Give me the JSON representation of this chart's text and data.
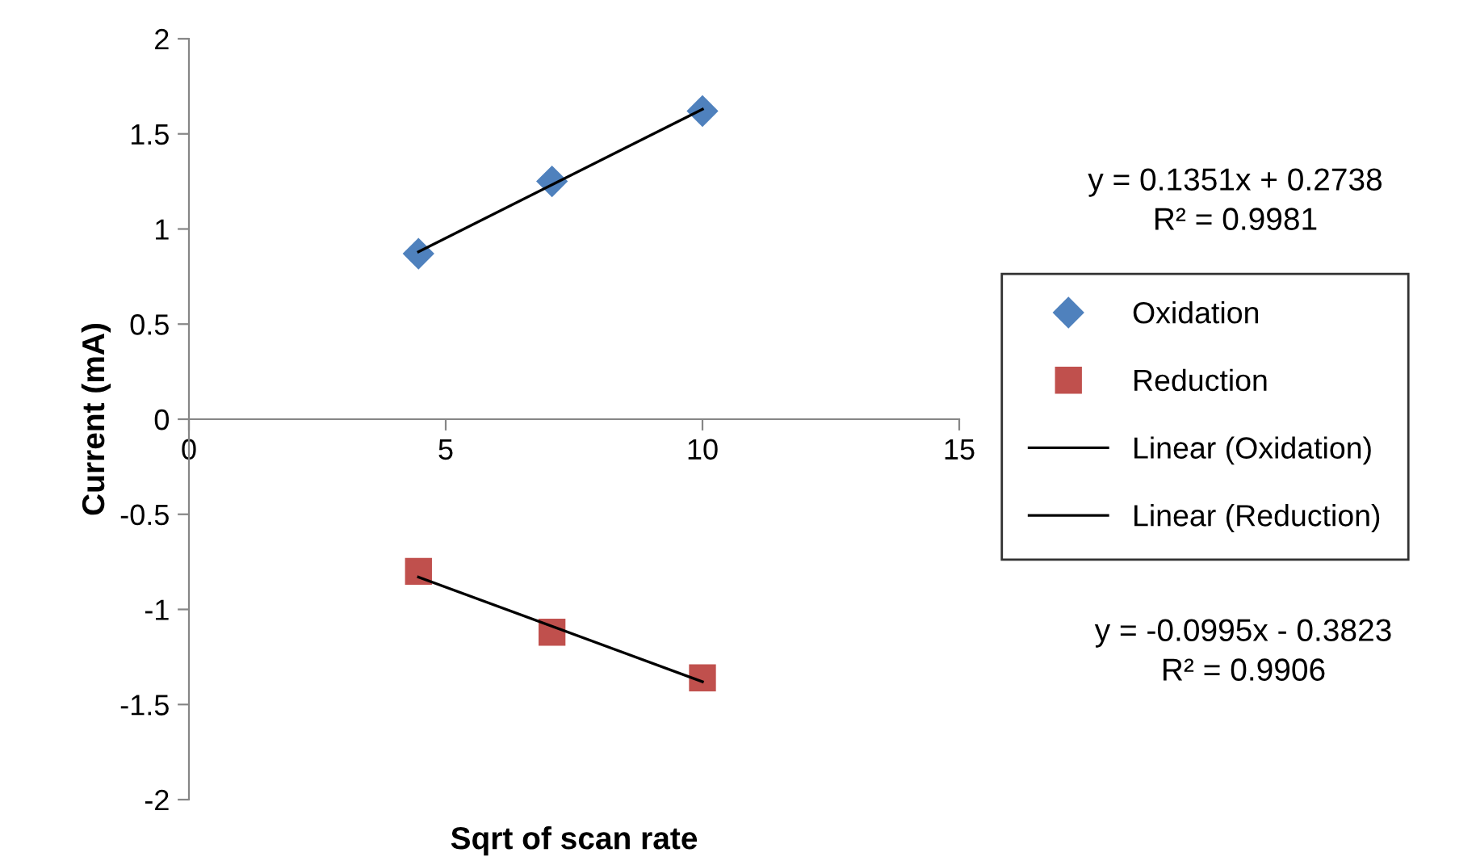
{
  "chart_data": {
    "type": "scatter",
    "xlabel": "Sqrt of scan rate",
    "ylabel": "Current (mA)",
    "xlim": [
      0,
      15
    ],
    "xticks": [
      0,
      5,
      10,
      15
    ],
    "ylim": [
      -2,
      2
    ],
    "yticks": [
      -2,
      -1.5,
      -1,
      -0.5,
      0,
      0.5,
      1,
      1.5,
      2
    ],
    "grid": false,
    "legend": "right",
    "series": [
      {
        "name": "Oxidation",
        "marker": "diamond",
        "color": "#4f81bd",
        "x": [
          4.47,
          7.07,
          10
        ],
        "values": [
          0.87,
          1.25,
          1.62
        ]
      },
      {
        "name": "Reduction",
        "marker": "square",
        "color": "#c0504d",
        "x": [
          4.47,
          7.07,
          10
        ],
        "values": [
          -0.8,
          -1.12,
          -1.36
        ]
      },
      {
        "name": "Linear (Oxidation)",
        "type": "line",
        "marker": "none",
        "color": "#000000",
        "x": [
          4.47,
          10
        ],
        "values": [
          0.88,
          1.63
        ]
      },
      {
        "name": "Linear (Reduction)",
        "type": "line",
        "marker": "none",
        "color": "#000000",
        "x": [
          4.47,
          10
        ],
        "values": [
          -0.83,
          -1.38
        ]
      }
    ],
    "annotations": [
      "y = 0.1351x + 0.2738\nR² = 0.9981",
      "y = -0.0995x - 0.3823\nR² = 0.9906"
    ]
  }
}
